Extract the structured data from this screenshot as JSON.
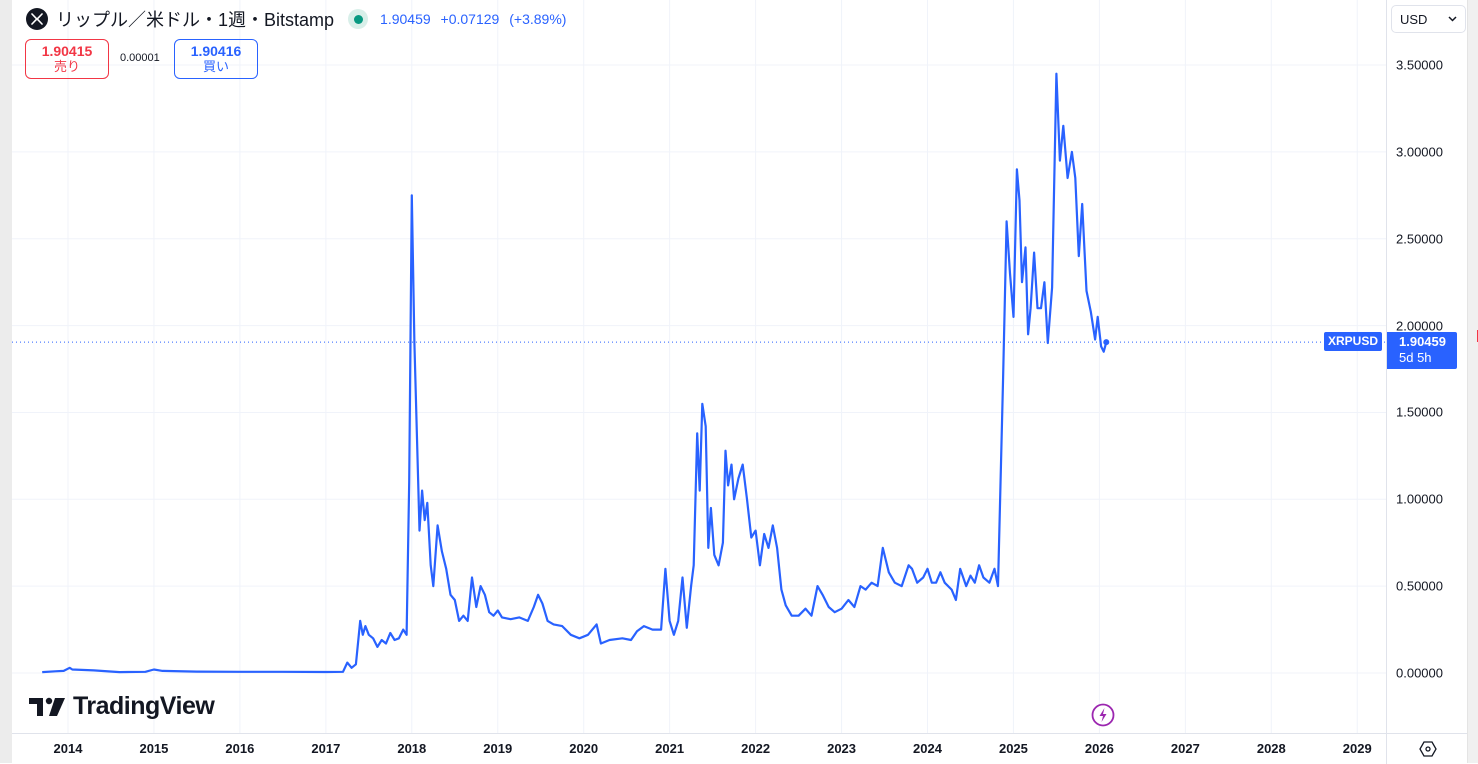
{
  "header": {
    "symbol_icon": "xrp-logo-icon",
    "title": "リップル／米ドル・1週・Bitstamp",
    "market_status": "open",
    "last_price": "1.90459",
    "change": "+0.07129",
    "change_pct": "(+3.89%)"
  },
  "trade": {
    "sell_price": "1.90415",
    "sell_label": "売り",
    "spread": "0.00001",
    "buy_price": "1.90416",
    "buy_label": "買い"
  },
  "currency_select": {
    "value": "USD"
  },
  "price_tag": {
    "symbol": "XRPUSD",
    "price": "1.90459",
    "countdown": "5d 5h"
  },
  "logo": {
    "text": "TradingView"
  },
  "colors": {
    "line": "#2962ff",
    "up": "#089981",
    "down": "#f23645",
    "accent": "#2962ff",
    "event": "#9c27b0"
  },
  "chart_data": {
    "type": "line",
    "title": "リップル／米ドル・1週・Bitstamp",
    "xlabel": "",
    "ylabel": "",
    "ylim": [
      -0.3,
      3.75
    ],
    "grid": true,
    "legend": "none",
    "y_ticks": [
      "3.50000",
      "3.00000",
      "2.50000",
      "2.00000",
      "1.50000",
      "1.00000",
      "0.50000",
      "0.00000"
    ],
    "x_ticks": [
      "2014",
      "2015",
      "2016",
      "2017",
      "2018",
      "2019",
      "2020",
      "2021",
      "2022",
      "2023",
      "2024",
      "2025",
      "2026",
      "2027",
      "2028",
      "2029"
    ],
    "current_value": 1.90459,
    "series": [
      {
        "name": "XRPUSD",
        "points": [
          [
            2013.7,
            0.005
          ],
          [
            2013.85,
            0.01
          ],
          [
            2013.95,
            0.012
          ],
          [
            2014.02,
            0.03
          ],
          [
            2014.05,
            0.02
          ],
          [
            2014.3,
            0.015
          ],
          [
            2014.6,
            0.005
          ],
          [
            2014.9,
            0.007
          ],
          [
            2015.0,
            0.02
          ],
          [
            2015.1,
            0.012
          ],
          [
            2015.5,
            0.008
          ],
          [
            2016.0,
            0.007
          ],
          [
            2016.5,
            0.007
          ],
          [
            2017.0,
            0.006
          ],
          [
            2017.2,
            0.007
          ],
          [
            2017.25,
            0.06
          ],
          [
            2017.3,
            0.03
          ],
          [
            2017.35,
            0.05
          ],
          [
            2017.4,
            0.3
          ],
          [
            2017.43,
            0.22
          ],
          [
            2017.46,
            0.27
          ],
          [
            2017.5,
            0.22
          ],
          [
            2017.55,
            0.2
          ],
          [
            2017.6,
            0.15
          ],
          [
            2017.65,
            0.19
          ],
          [
            2017.7,
            0.17
          ],
          [
            2017.75,
            0.23
          ],
          [
            2017.8,
            0.19
          ],
          [
            2017.85,
            0.2
          ],
          [
            2017.9,
            0.25
          ],
          [
            2017.94,
            0.22
          ],
          [
            2017.97,
            1.1
          ],
          [
            2018.0,
            2.75
          ],
          [
            2018.03,
            1.9
          ],
          [
            2018.06,
            1.35
          ],
          [
            2018.09,
            0.82
          ],
          [
            2018.12,
            1.05
          ],
          [
            2018.15,
            0.88
          ],
          [
            2018.18,
            0.98
          ],
          [
            2018.22,
            0.62
          ],
          [
            2018.25,
            0.5
          ],
          [
            2018.3,
            0.85
          ],
          [
            2018.35,
            0.7
          ],
          [
            2018.4,
            0.6
          ],
          [
            2018.45,
            0.45
          ],
          [
            2018.5,
            0.42
          ],
          [
            2018.55,
            0.3
          ],
          [
            2018.6,
            0.33
          ],
          [
            2018.65,
            0.3
          ],
          [
            2018.7,
            0.55
          ],
          [
            2018.75,
            0.38
          ],
          [
            2018.8,
            0.5
          ],
          [
            2018.85,
            0.45
          ],
          [
            2018.9,
            0.35
          ],
          [
            2018.95,
            0.33
          ],
          [
            2019.0,
            0.36
          ],
          [
            2019.05,
            0.32
          ],
          [
            2019.15,
            0.31
          ],
          [
            2019.25,
            0.32
          ],
          [
            2019.35,
            0.3
          ],
          [
            2019.42,
            0.38
          ],
          [
            2019.47,
            0.45
          ],
          [
            2019.52,
            0.4
          ],
          [
            2019.58,
            0.3
          ],
          [
            2019.65,
            0.28
          ],
          [
            2019.75,
            0.27
          ],
          [
            2019.85,
            0.22
          ],
          [
            2019.95,
            0.2
          ],
          [
            2020.05,
            0.22
          ],
          [
            2020.15,
            0.28
          ],
          [
            2020.2,
            0.17
          ],
          [
            2020.3,
            0.19
          ],
          [
            2020.45,
            0.2
          ],
          [
            2020.55,
            0.19
          ],
          [
            2020.62,
            0.24
          ],
          [
            2020.7,
            0.27
          ],
          [
            2020.8,
            0.25
          ],
          [
            2020.9,
            0.25
          ],
          [
            2020.95,
            0.6
          ],
          [
            2021.0,
            0.3
          ],
          [
            2021.05,
            0.22
          ],
          [
            2021.1,
            0.3
          ],
          [
            2021.15,
            0.55
          ],
          [
            2021.2,
            0.26
          ],
          [
            2021.25,
            0.5
          ],
          [
            2021.28,
            0.62
          ],
          [
            2021.32,
            1.38
          ],
          [
            2021.35,
            1.05
          ],
          [
            2021.38,
            1.55
          ],
          [
            2021.42,
            1.42
          ],
          [
            2021.45,
            0.72
          ],
          [
            2021.48,
            0.95
          ],
          [
            2021.52,
            0.68
          ],
          [
            2021.57,
            0.62
          ],
          [
            2021.62,
            0.75
          ],
          [
            2021.65,
            1.28
          ],
          [
            2021.68,
            1.08
          ],
          [
            2021.72,
            1.2
          ],
          [
            2021.75,
            1.0
          ],
          [
            2021.8,
            1.12
          ],
          [
            2021.85,
            1.2
          ],
          [
            2021.9,
            1.0
          ],
          [
            2021.95,
            0.78
          ],
          [
            2022.0,
            0.82
          ],
          [
            2022.05,
            0.62
          ],
          [
            2022.1,
            0.8
          ],
          [
            2022.15,
            0.72
          ],
          [
            2022.2,
            0.85
          ],
          [
            2022.25,
            0.72
          ],
          [
            2022.3,
            0.48
          ],
          [
            2022.35,
            0.39
          ],
          [
            2022.42,
            0.33
          ],
          [
            2022.5,
            0.33
          ],
          [
            2022.58,
            0.37
          ],
          [
            2022.65,
            0.33
          ],
          [
            2022.72,
            0.5
          ],
          [
            2022.78,
            0.45
          ],
          [
            2022.85,
            0.38
          ],
          [
            2022.92,
            0.35
          ],
          [
            2023.0,
            0.37
          ],
          [
            2023.08,
            0.42
          ],
          [
            2023.15,
            0.38
          ],
          [
            2023.22,
            0.5
          ],
          [
            2023.28,
            0.48
          ],
          [
            2023.35,
            0.52
          ],
          [
            2023.42,
            0.5
          ],
          [
            2023.48,
            0.72
          ],
          [
            2023.55,
            0.58
          ],
          [
            2023.62,
            0.52
          ],
          [
            2023.7,
            0.5
          ],
          [
            2023.78,
            0.62
          ],
          [
            2023.82,
            0.6
          ],
          [
            2023.88,
            0.52
          ],
          [
            2023.95,
            0.55
          ],
          [
            2024.0,
            0.6
          ],
          [
            2024.05,
            0.52
          ],
          [
            2024.1,
            0.52
          ],
          [
            2024.15,
            0.58
          ],
          [
            2024.2,
            0.52
          ],
          [
            2024.28,
            0.48
          ],
          [
            2024.33,
            0.42
          ],
          [
            2024.38,
            0.6
          ],
          [
            2024.45,
            0.5
          ],
          [
            2024.5,
            0.56
          ],
          [
            2024.55,
            0.52
          ],
          [
            2024.6,
            0.62
          ],
          [
            2024.65,
            0.55
          ],
          [
            2024.72,
            0.52
          ],
          [
            2024.78,
            0.6
          ],
          [
            2024.82,
            0.5
          ],
          [
            2024.88,
            1.7
          ],
          [
            2024.92,
            2.6
          ],
          [
            2024.96,
            2.3
          ],
          [
            2025.0,
            2.05
          ],
          [
            2025.04,
            2.9
          ],
          [
            2025.07,
            2.72
          ],
          [
            2025.1,
            2.25
          ],
          [
            2025.14,
            2.45
          ],
          [
            2025.17,
            1.95
          ],
          [
            2025.2,
            2.1
          ],
          [
            2025.24,
            2.42
          ],
          [
            2025.28,
            2.1
          ],
          [
            2025.32,
            2.1
          ],
          [
            2025.36,
            2.25
          ],
          [
            2025.4,
            1.9
          ],
          [
            2025.45,
            2.22
          ],
          [
            2025.5,
            3.45
          ],
          [
            2025.54,
            2.95
          ],
          [
            2025.58,
            3.15
          ],
          [
            2025.63,
            2.85
          ],
          [
            2025.68,
            3.0
          ],
          [
            2025.72,
            2.85
          ],
          [
            2025.76,
            2.4
          ],
          [
            2025.8,
            2.7
          ],
          [
            2025.85,
            2.2
          ],
          [
            2025.9,
            2.08
          ],
          [
            2025.95,
            1.92
          ],
          [
            2025.98,
            2.05
          ],
          [
            2026.02,
            1.88
          ],
          [
            2026.05,
            1.85
          ],
          [
            2026.08,
            1.90459
          ]
        ]
      }
    ]
  },
  "y_axis": {
    "ticks": [
      {
        "label": "3.50000",
        "value": 3.5
      },
      {
        "label": "3.00000",
        "value": 3.0
      },
      {
        "label": "2.50000",
        "value": 2.5
      },
      {
        "label": "2.00000",
        "value": 2.0
      },
      {
        "label": "1.50000",
        "value": 1.5
      },
      {
        "label": "1.00000",
        "value": 1.0
      },
      {
        "label": "0.50000",
        "value": 0.5
      },
      {
        "label": "0.00000",
        "value": 0.0
      }
    ]
  },
  "x_axis": {
    "ticks": [
      {
        "label": "2014",
        "value": 2014
      },
      {
        "label": "2015",
        "value": 2015
      },
      {
        "label": "2016",
        "value": 2016
      },
      {
        "label": "2017",
        "value": 2017
      },
      {
        "label": "2018",
        "value": 2018
      },
      {
        "label": "2019",
        "value": 2019
      },
      {
        "label": "2020",
        "value": 2020
      },
      {
        "label": "2021",
        "value": 2021
      },
      {
        "label": "2022",
        "value": 2022
      },
      {
        "label": "2023",
        "value": 2023
      },
      {
        "label": "2024",
        "value": 2024
      },
      {
        "label": "2025",
        "value": 2025
      },
      {
        "label": "2026",
        "value": 2026
      },
      {
        "label": "2027",
        "value": 2027
      },
      {
        "label": "2028",
        "value": 2028
      },
      {
        "label": "2029",
        "value": 2029
      }
    ]
  },
  "icons": {
    "event": "lightning-event-icon",
    "settings": "auto-scale-settings-icon",
    "dropdown": "chevron-down-icon"
  }
}
